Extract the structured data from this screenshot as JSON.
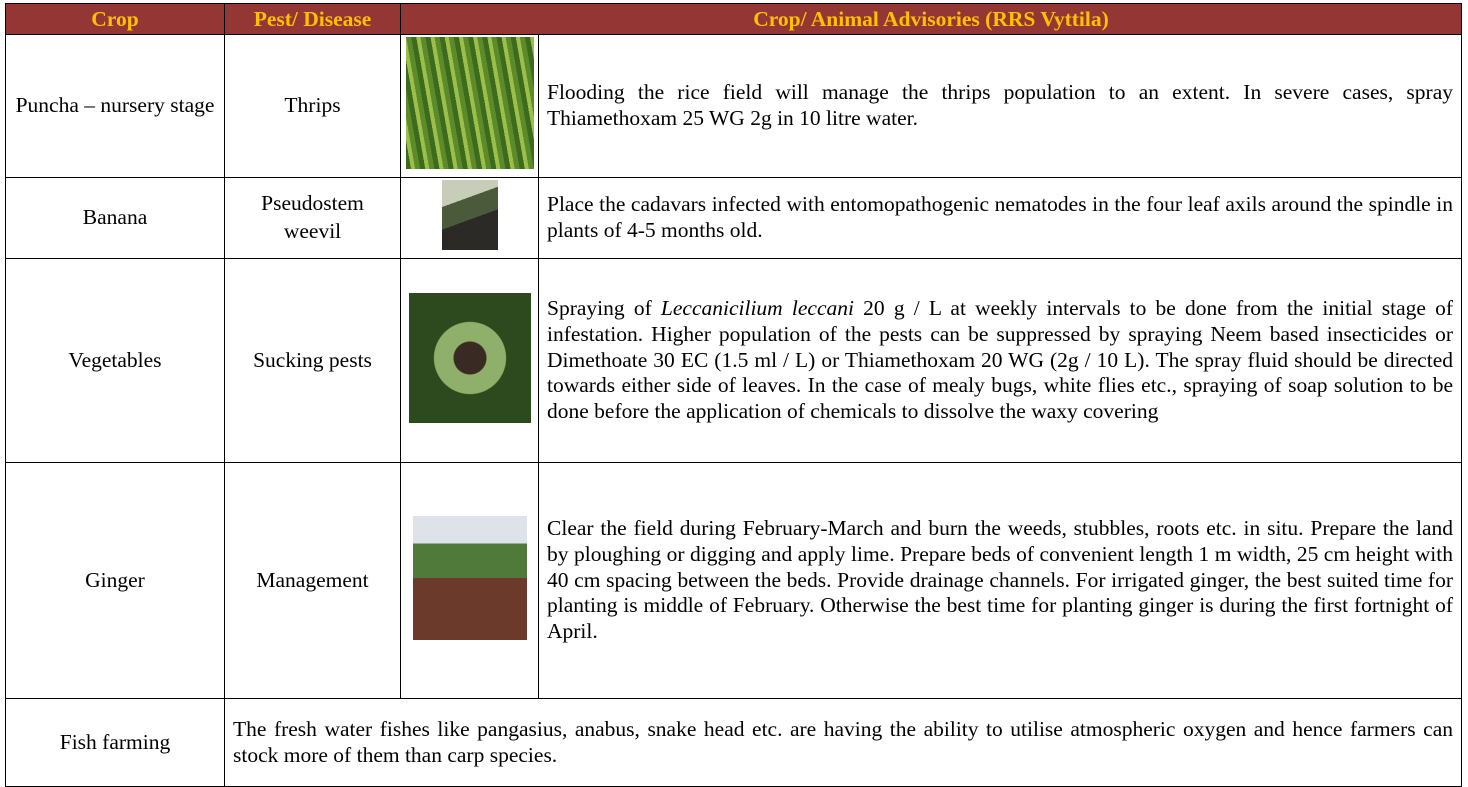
{
  "table": {
    "header": [
      "Crop",
      "Pest/ Disease",
      "Crop/ Animal Advisories  (RRS Vyttila)"
    ],
    "rows": [
      {
        "crop": "Puncha – nursery stage",
        "pest": "Thrips",
        "advisory": [
          "Flooding the rice field will manage the thrips population to an extent. In severe cases, spray Thiamethoxam 25 WG 2g in 10 litre water."
        ]
      },
      {
        "crop": "Banana",
        "pest": "Pseudostem weevil",
        "advisory": [
          "Place the cadavars infected with entomopathogenic nematodes in the four leaf axils around the spindle in plants of 4-5 months old."
        ]
      },
      {
        "crop": "Vegetables",
        "pest": "Sucking pests",
        "advisory": [
          "Spraying of ",
          "Leccanicilium leccani",
          " 20 g / L at weekly intervals to be done from the initial stage of infestation. Higher population of the pests can be suppressed by spraying Neem based insecticides or Dimethoate 30 EC (1.5 ml / L) or Thiamethoxam 20 WG (2g / 10 L). The spray fluid should be directed towards either side of leaves. In the case of mealy bugs, white flies etc., spraying of soap solution to be done before the application of chemicals to dissolve the waxy covering"
        ]
      },
      {
        "crop": "Ginger",
        "pest": "Management",
        "advisory": [
          "Clear the field during February-March and burn the weeds, stubbles, roots etc. in situ. Prepare the land by ploughing or digging and apply lime. Prepare beds of convenient length 1 m width, 25 cm height with 40 cm spacing between the beds. Provide drainage channels. For irrigated ginger, the best suited time for planting is middle of February. Otherwise the best time for planting ginger is during the first fortnight of April."
        ]
      },
      {
        "crop": "Fish farming",
        "advisory": [
          "The fresh water fishes like pangasius, anabus, snake head etc. are having the ability to utilise atmospheric oxygen and hence farmers can stock more of them than carp species."
        ]
      }
    ]
  }
}
